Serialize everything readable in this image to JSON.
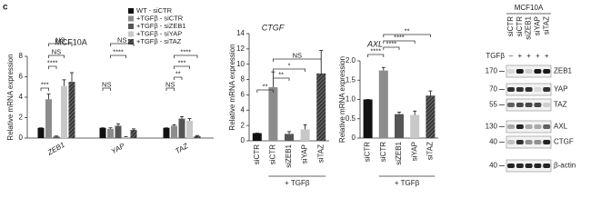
{
  "panel_label": "c",
  "chart_data": [
    {
      "type": "grouped-bar",
      "title": "MCF10A",
      "y_label": "Relative mRNA expression",
      "categories": [
        "ZEB1",
        "YAP",
        "TAZ"
      ],
      "series": [
        {
          "name": "WT - siCTR",
          "color": "#111111",
          "values": [
            1,
            1,
            1
          ],
          "errors": [
            0,
            0,
            0
          ]
        },
        {
          "name": "+TGFβ - siCTR",
          "color": "#8c8c8c",
          "values": [
            3.8,
            0.9,
            1.2
          ],
          "errors": [
            0.5,
            0.1,
            0.1
          ]
        },
        {
          "name": "+TGFβ - siZEB1",
          "color": "#555555",
          "values": [
            0.15,
            1.2,
            1.9
          ],
          "errors": [
            0.05,
            0.2,
            0.2
          ]
        },
        {
          "name": "+TGFβ - siYAP",
          "color": "#c8c8c8",
          "values": [
            5.1,
            0.1,
            1.7
          ],
          "errors": [
            0.6,
            0.05,
            0.2
          ]
        },
        {
          "name": "+TGFβ - siTAZ",
          "color": "#3a3a3a",
          "pattern": "hatch",
          "values": [
            5.5,
            0.8,
            0.2
          ],
          "errors": [
            0.9,
            0.1,
            0.05
          ]
        }
      ],
      "ylim": [
        0,
        8
      ],
      "yticks": [
        0,
        2,
        4,
        6,
        8
      ],
      "significance": [
        "***",
        "****",
        "NS",
        "NS",
        "NS",
        "****",
        "NS",
        "NS",
        "**",
        "***",
        "****"
      ]
    },
    {
      "type": "bar",
      "title": "CTGF",
      "y_label": "Relative mRNA expression",
      "categories": [
        "siCTR",
        "siCTR",
        "siZEB1",
        "siYAP",
        "siTAZ"
      ],
      "values": [
        1,
        7,
        0.9,
        1.5,
        8.8
      ],
      "errors": [
        0,
        2,
        0.3,
        0.6,
        3
      ],
      "colors": [
        "#111111",
        "#8c8c8c",
        "#555555",
        "#c8c8c8",
        "#3a3a3a"
      ],
      "patterns": [
        null,
        null,
        null,
        null,
        "hatch"
      ],
      "ylim": [
        0,
        14
      ],
      "yticks": [
        0,
        2,
        4,
        6,
        8,
        10,
        12,
        14
      ],
      "group_label": "+ TGFβ",
      "significance": [
        "**",
        "**",
        "*",
        "NS"
      ]
    },
    {
      "type": "bar",
      "title": "AXL",
      "y_label": "Relative mRNA expression",
      "categories": [
        "siCTR",
        "siCTR",
        "siZEB1",
        "siYAP",
        "siTAZ"
      ],
      "values": [
        1,
        1.75,
        0.62,
        0.6,
        1.1
      ],
      "errors": [
        0,
        0.08,
        0.05,
        0.1,
        0.12
      ],
      "colors": [
        "#111111",
        "#8c8c8c",
        "#555555",
        "#c8c8c8",
        "#3a3a3a"
      ],
      "patterns": [
        null,
        null,
        null,
        null,
        "hatch"
      ],
      "ylim": [
        0,
        2
      ],
      "yticks": [
        0,
        0.5,
        {
          "value": 1,
          "label": "1.0"
        },
        1.5,
        {
          "value": 2,
          "label": "2.0"
        }
      ],
      "group_label": "+ TGFβ",
      "significance": [
        "****",
        "****",
        "****",
        "**"
      ]
    }
  ],
  "blot": {
    "title": "MCF10A",
    "lanes": [
      "siCTR",
      "siCTR",
      "siZEB1",
      "siYAP",
      "siTAZ"
    ],
    "treatment_label": "TGFβ",
    "treatment": [
      "–",
      "+",
      "+",
      "+",
      "+"
    ],
    "rows": [
      {
        "marker": "170",
        "protein": "ZEB1"
      },
      {
        "marker": "70",
        "protein": "YAP"
      },
      {
        "marker": "55",
        "protein": "TAZ"
      },
      {
        "marker": "130",
        "protein": "AXL"
      },
      {
        "marker": "40",
        "protein": "CTGF"
      },
      {
        "marker": "40",
        "protein": "β-actin"
      }
    ]
  }
}
